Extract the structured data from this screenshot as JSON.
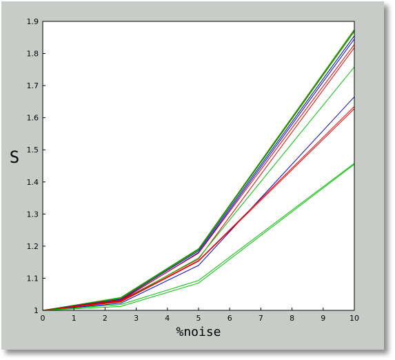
{
  "chart_data": {
    "type": "line",
    "xlabel": "%noise",
    "ylabel": "S",
    "xlim": [
      0,
      10
    ],
    "ylim": [
      1,
      1.9
    ],
    "xticks": [
      0,
      1,
      2,
      3,
      4,
      5,
      6,
      7,
      8,
      9,
      10
    ],
    "yticks": [
      1,
      1.1,
      1.2,
      1.3,
      1.4,
      1.5,
      1.6,
      1.7,
      1.8,
      1.9
    ],
    "ytick_labels": [
      "1",
      "1.1",
      "1.2",
      "1.3",
      "1.4",
      "1.5",
      "1.6",
      "1.7",
      "1.8",
      "1.9"
    ],
    "grid": false,
    "x": [
      0,
      2.5,
      5,
      10
    ],
    "series": [
      {
        "color": "#00c000",
        "values": [
          1,
          1.04,
          1.192,
          1.875
        ]
      },
      {
        "color": "#804000",
        "values": [
          1,
          1.038,
          1.19,
          1.872
        ]
      },
      {
        "color": "#00c000",
        "values": [
          1,
          1.036,
          1.188,
          1.868
        ]
      },
      {
        "color": "#0000c0",
        "values": [
          1,
          1.034,
          1.185,
          1.855
        ]
      },
      {
        "color": "#0000c0",
        "values": [
          1,
          1.03,
          1.18,
          1.845
        ]
      },
      {
        "color": "#e00000",
        "values": [
          1,
          1.032,
          1.178,
          1.828
        ]
      },
      {
        "color": "#e00000",
        "values": [
          1,
          1.03,
          1.16,
          1.818
        ]
      },
      {
        "color": "#00c000",
        "values": [
          1,
          1.027,
          1.163,
          1.758
        ]
      },
      {
        "color": "#0000c0",
        "values": [
          1,
          1.022,
          1.14,
          1.665
        ]
      },
      {
        "color": "#e00000",
        "values": [
          1,
          1.028,
          1.155,
          1.635
        ]
      },
      {
        "color": "#e00000",
        "values": [
          1,
          1.026,
          1.153,
          1.628
        ]
      },
      {
        "color": "#00c000",
        "values": [
          1,
          1.018,
          1.093,
          1.458
        ]
      },
      {
        "color": "#00c000",
        "values": [
          1,
          1.012,
          1.085,
          1.455
        ]
      }
    ]
  }
}
